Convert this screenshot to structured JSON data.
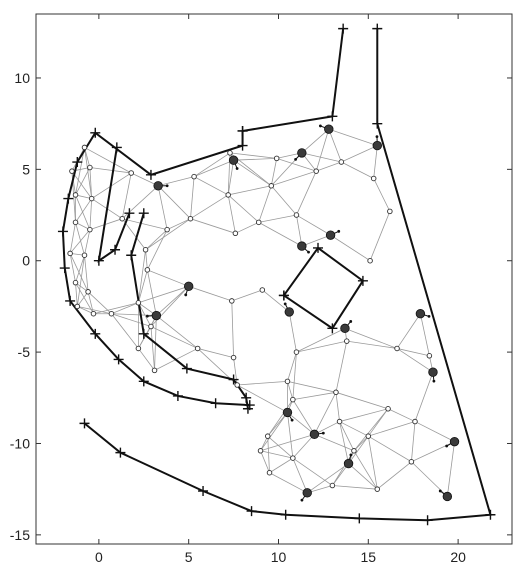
{
  "chart_data": {
    "type": "scatter",
    "title": "",
    "xlabel": "",
    "ylabel": "",
    "xlim": [
      -3.5,
      23
    ],
    "ylim": [
      -15.5,
      13.5
    ],
    "grid": false,
    "xticks": [
      0,
      5,
      10,
      15,
      20
    ],
    "yticks": [
      10,
      5,
      0,
      -5,
      -10,
      -15
    ],
    "xtick_labels": [
      "0",
      "5",
      "10",
      "15",
      "20"
    ],
    "ytick_labels": [
      "10",
      "5",
      "0",
      "-5",
      "-10",
      "-15"
    ],
    "series": [
      {
        "kind": "wall",
        "points": [
          [
            8,
            7.1
          ],
          [
            13,
            7.9
          ],
          [
            13.6,
            12.7
          ]
        ]
      },
      {
        "kind": "wall",
        "points": [
          [
            15.5,
            12.7
          ],
          [
            15.5,
            7.5
          ],
          [
            21.8,
            -13.9
          ],
          [
            18.3,
            -14.2
          ],
          [
            14.5,
            -14.1
          ],
          [
            10.4,
            -13.9
          ],
          [
            8.5,
            -13.7
          ],
          [
            5.8,
            -12.6
          ],
          [
            1.2,
            -10.5
          ],
          [
            -0.8,
            -8.9
          ]
        ]
      },
      {
        "kind": "wall",
        "points": [
          [
            8,
            7.1
          ],
          [
            8,
            6.3
          ],
          [
            2.9,
            4.7
          ],
          [
            -0.2,
            7
          ],
          [
            -1.2,
            5.4
          ],
          [
            -1.7,
            3.4
          ],
          [
            -2,
            1.6
          ],
          [
            -1.9,
            -0.4
          ],
          [
            -1.6,
            -2.2
          ],
          [
            -0.2,
            -4
          ],
          [
            1.1,
            -5.4
          ],
          [
            2.5,
            -6.6
          ],
          [
            4.4,
            -7.4
          ],
          [
            6.5,
            -7.8
          ],
          [
            8.4,
            -7.9
          ]
        ]
      },
      {
        "kind": "wall",
        "points": [
          [
            1,
            6.2
          ],
          [
            0,
            0
          ],
          [
            0.9,
            0.6
          ],
          [
            1.7,
            2.6
          ]
        ]
      },
      {
        "kind": "wall",
        "points": [
          [
            2.5,
            2.6
          ],
          [
            1.8,
            0.3
          ],
          [
            2.5,
            -4
          ],
          [
            4.9,
            -5.9
          ],
          [
            7.5,
            -6.5
          ],
          [
            8.2,
            -7.5
          ],
          [
            8.3,
            -8.1
          ]
        ]
      },
      {
        "kind": "obstacle",
        "points": [
          [
            10.3,
            -1.9
          ],
          [
            12.2,
            0.7
          ],
          [
            14.7,
            -1.1
          ],
          [
            13,
            -3.7
          ],
          [
            10.3,
            -1.9
          ]
        ]
      },
      {
        "kind": "nodes-small",
        "points": [
          [
            -1.5,
            4.9
          ],
          [
            -0.8,
            6.2
          ],
          [
            -0.5,
            5.1
          ],
          [
            -1.3,
            3.6
          ],
          [
            -0.4,
            3.4
          ],
          [
            -1.3,
            2.1
          ],
          [
            -0.5,
            1.7
          ],
          [
            -1.6,
            0.4
          ],
          [
            -0.8,
            0.3
          ],
          [
            -1.3,
            -1.2
          ],
          [
            -0.6,
            -1.7
          ],
          [
            -1.2,
            -2.5
          ],
          [
            -0.3,
            -2.9
          ],
          [
            0.7,
            -2.9
          ],
          [
            1.3,
            2.3
          ],
          [
            1.8,
            4.8
          ],
          [
            2.7,
            -0.5
          ],
          [
            2.9,
            -3.6
          ],
          [
            3.1,
            -6
          ],
          [
            5.3,
            4.6
          ],
          [
            5.1,
            2.3
          ],
          [
            7.3,
            5.9
          ],
          [
            7.2,
            3.6
          ],
          [
            7.6,
            1.5
          ],
          [
            9.9,
            5.6
          ],
          [
            9.6,
            4.1
          ],
          [
            8.9,
            2.1
          ],
          [
            9.1,
            -1.6
          ],
          [
            7.4,
            -2.2
          ],
          [
            11,
            2.5
          ],
          [
            12.1,
            4.9
          ],
          [
            13.5,
            5.4
          ],
          [
            15.3,
            4.5
          ],
          [
            16.2,
            2.7
          ],
          [
            15.1,
            0
          ],
          [
            16.6,
            -4.8
          ],
          [
            18.4,
            -5.2
          ],
          [
            17.6,
            -8.8
          ],
          [
            13.8,
            -4.4
          ],
          [
            13.2,
            -7.2
          ],
          [
            11,
            -5
          ],
          [
            10.5,
            -6.6
          ],
          [
            10.8,
            -7.6
          ],
          [
            9.4,
            -9.6
          ],
          [
            9,
            -10.4
          ],
          [
            10.8,
            -10.8
          ],
          [
            9.5,
            -11.6
          ],
          [
            13.4,
            -8.8
          ],
          [
            15,
            -9.6
          ],
          [
            16.1,
            -8.1
          ],
          [
            14.2,
            -10.4
          ],
          [
            17.4,
            -11
          ],
          [
            15.5,
            -12.5
          ],
          [
            13,
            -12.3
          ],
          [
            7.5,
            -5.3
          ],
          [
            7.7,
            -6.8
          ],
          [
            5.5,
            -4.8
          ],
          [
            2.2,
            -2.3
          ],
          [
            2.2,
            -4.8
          ],
          [
            2.6,
            0.6
          ],
          [
            3.8,
            1.7
          ]
        ]
      },
      {
        "kind": "nodes-large",
        "points": [
          [
            3.3,
            4.1
          ],
          [
            7.5,
            5.5
          ],
          [
            11.3,
            5.9
          ],
          [
            12.8,
            7.2
          ],
          [
            15.5,
            6.3
          ],
          [
            12.9,
            1.4
          ],
          [
            11.3,
            0.8
          ],
          [
            5,
            -1.4
          ],
          [
            3.2,
            -3
          ],
          [
            10.6,
            -2.8
          ],
          [
            13.7,
            -3.7
          ],
          [
            17.9,
            -2.9
          ],
          [
            18.6,
            -6.1
          ],
          [
            19.8,
            -9.9
          ],
          [
            19.4,
            -12.9
          ],
          [
            13.9,
            -11.1
          ],
          [
            12,
            -9.5
          ],
          [
            10.5,
            -8.3
          ],
          [
            11.6,
            -12.7
          ]
        ]
      }
    ]
  }
}
